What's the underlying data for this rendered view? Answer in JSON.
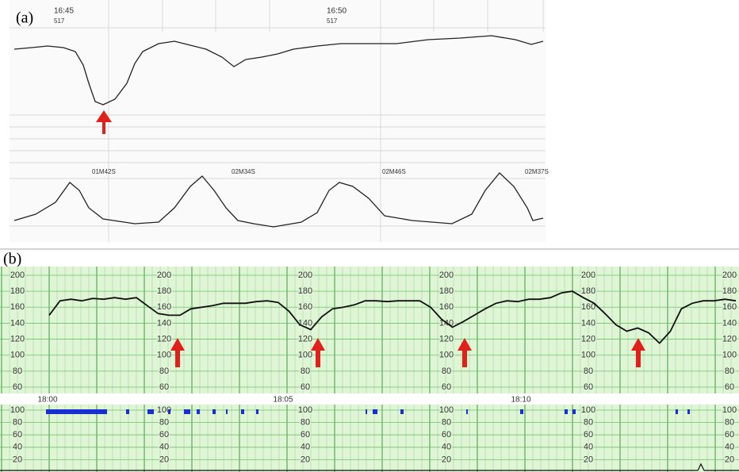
{
  "panel_a": {
    "label": "(a)",
    "time_marks": [
      "16:45",
      "16:50"
    ],
    "codes": [
      "517",
      "517"
    ],
    "interval_labels": [
      "01M42S",
      "02M34S",
      "02M46S",
      "02M37S"
    ]
  },
  "panel_b": {
    "label": "(b)",
    "time_labels": [
      "18:00",
      "18:05",
      "18:10"
    ],
    "fhr_ticks": [
      200,
      180,
      160,
      140,
      120,
      100,
      80,
      60
    ],
    "fhr_lim": [
      60,
      200
    ],
    "toco_ticks": [
      100,
      80,
      60,
      40,
      20
    ],
    "toco_lim": [
      0,
      100
    ],
    "fhr": [
      150,
      168,
      170,
      168,
      171,
      170,
      172,
      170,
      172,
      162,
      152,
      150,
      150,
      158,
      160,
      162,
      165,
      165,
      165,
      167,
      168,
      166,
      155,
      138,
      132,
      148,
      158,
      160,
      163,
      168,
      168,
      167,
      168,
      168,
      168,
      160,
      145,
      135,
      142,
      150,
      158,
      165,
      168,
      167,
      170,
      170,
      172,
      178,
      180,
      172,
      165,
      152,
      138,
      130,
      134,
      128,
      115,
      130,
      158,
      165,
      168,
      168,
      170,
      168
    ]
  }
}
